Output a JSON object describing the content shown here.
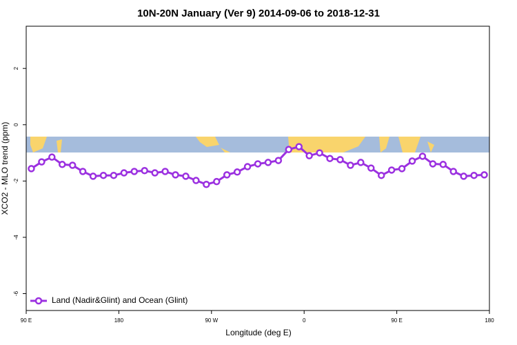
{
  "chart_data": {
    "type": "line",
    "title": "10N-20N January (Ver 9)   2014-09-06 to 2018-12-31",
    "x_label": "Longitude (deg E)",
    "y_label": "XCO2 - MLO trend (ppm)",
    "xlim": [
      90,
      540
    ],
    "ylim": [
      -6.6,
      3.5
    ],
    "xticks": [
      {
        "value": 90,
        "label": "90 E"
      },
      180,
      {
        "value": 270,
        "label": "90 W"
      },
      {
        "value": 360,
        "label": "0"
      },
      {
        "value": 450,
        "label": "90 E"
      },
      {
        "value": 540,
        "label": "180"
      }
    ],
    "yticks": [
      -6,
      -4,
      -2,
      0,
      2
    ],
    "legend": "bottom-left",
    "x": [
      95,
      105,
      115,
      125,
      135,
      145,
      155,
      165,
      175,
      185,
      195,
      205,
      215,
      225,
      235,
      245,
      255,
      265,
      275,
      285,
      295,
      305,
      315,
      325,
      335,
      345,
      355,
      365,
      375,
      385,
      395,
      405,
      415,
      425,
      435,
      445,
      455,
      465,
      475,
      485,
      495,
      505,
      515,
      525,
      535
    ],
    "series": [
      {
        "name": "Land (Nadir&Glint) and Ocean (Glint)",
        "color": "#9b30e0",
        "values": [
          -1.56,
          -1.32,
          -1.15,
          -1.41,
          -1.44,
          -1.66,
          -1.83,
          -1.8,
          -1.8,
          -1.71,
          -1.66,
          -1.63,
          -1.71,
          -1.66,
          -1.78,
          -1.83,
          -1.98,
          -2.12,
          -2.02,
          -1.78,
          -1.68,
          -1.49,
          -1.39,
          -1.34,
          -1.27,
          -0.88,
          -0.78,
          -1.1,
          -1.0,
          -1.2,
          -1.24,
          -1.44,
          -1.34,
          -1.54,
          -1.8,
          -1.61,
          -1.56,
          -1.29,
          -1.12,
          -1.39,
          -1.41,
          -1.66,
          -1.83,
          -1.8,
          -1.78
        ]
      }
    ]
  }
}
